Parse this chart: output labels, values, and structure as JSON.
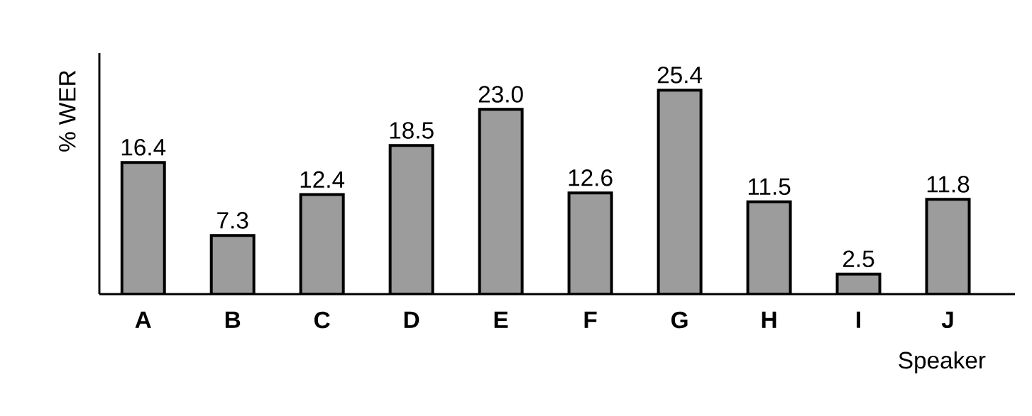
{
  "chart_data": {
    "type": "bar",
    "xlabel": "Speaker",
    "ylabel": "% WER",
    "categories": [
      "A",
      "B",
      "C",
      "D",
      "E",
      "F",
      "G",
      "H",
      "I",
      "J"
    ],
    "values": [
      16.4,
      7.3,
      12.4,
      18.5,
      23.0,
      12.6,
      25.4,
      11.5,
      2.5,
      11.8
    ],
    "value_labels": [
      "16.4",
      "7.3",
      "12.4",
      "18.5",
      "23.0",
      "12.6",
      "25.4",
      "11.5",
      "2.5",
      "11.8"
    ],
    "color": "#9c9c9c",
    "ylim": [
      0,
      30
    ]
  }
}
